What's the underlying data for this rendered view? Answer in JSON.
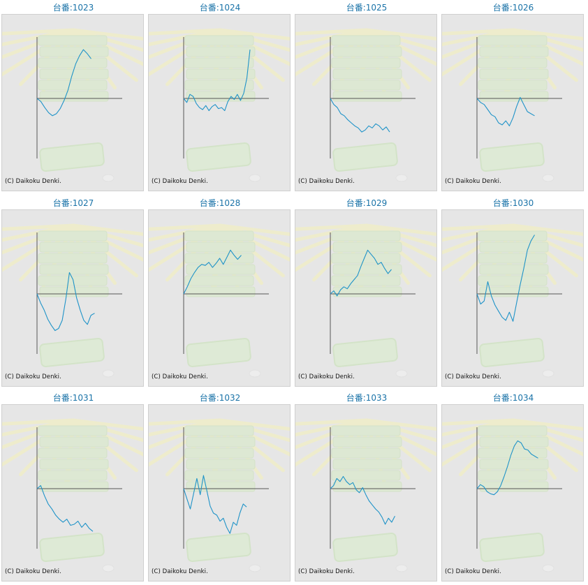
{
  "colors": {
    "title": "#1a73a8",
    "line": "#1f93c8",
    "axis": "#555555",
    "panel_bg": "#e6e6e6"
  },
  "chart_data": [
    {
      "type": "line",
      "title": "台番:1023",
      "copyright": "(C) Daikoku Denki.",
      "y": [
        0,
        -300,
        -900,
        -1400,
        -1700,
        -1500,
        -1000,
        -200,
        800,
        2200,
        3400,
        4200,
        4800,
        4400,
        3900
      ]
    },
    {
      "type": "line",
      "title": "台番:1024",
      "copyright": "(C) Daikoku Denki.",
      "y": [
        0,
        -400,
        400,
        200,
        -500,
        -900,
        -1100,
        -700,
        -1200,
        -800,
        -600,
        -1000,
        -900,
        -1200,
        -300,
        200,
        -100,
        400,
        -200,
        500,
        2000,
        4800
      ]
    },
    {
      "type": "line",
      "title": "台番:1025",
      "copyright": "(C) Daikoku Denki.",
      "y": [
        0,
        -600,
        -900,
        -1500,
        -1700,
        -2100,
        -2400,
        -2700,
        -2900,
        -3300,
        -3100,
        -2700,
        -2900,
        -2500,
        -2700,
        -3100,
        -2800,
        -3300
      ]
    },
    {
      "type": "line",
      "title": "台番:1026",
      "copyright": "(C) Daikoku Denki.",
      "y": [
        0,
        -400,
        -600,
        -1100,
        -1600,
        -1800,
        -2400,
        -2600,
        -2200,
        -2700,
        -1900,
        -800,
        100,
        -600,
        -1300,
        -1500,
        -1700
      ]
    },
    {
      "type": "line",
      "title": "台番:1027",
      "copyright": "(C) Daikoku Denki.",
      "y": [
        0,
        -900,
        -1600,
        -2500,
        -3100,
        -3600,
        -3400,
        -2600,
        -500,
        2100,
        1400,
        -400,
        -1600,
        -2600,
        -3000,
        -2100,
        -1900
      ]
    },
    {
      "type": "line",
      "title": "台番:1028",
      "copyright": "(C) Daikoku Denki.",
      "y": [
        0,
        700,
        1500,
        2100,
        2600,
        2900,
        2800,
        3100,
        2600,
        3000,
        3500,
        2900,
        3600,
        4300,
        3800,
        3400,
        3800
      ]
    },
    {
      "type": "line",
      "title": "台番:1029",
      "copyright": "(C) Daikoku Denki.",
      "y": [
        0,
        300,
        -200,
        400,
        700,
        500,
        1000,
        1400,
        1800,
        2700,
        3500,
        4300,
        3900,
        3500,
        2900,
        3100,
        2500,
        2000,
        2400
      ]
    },
    {
      "type": "line",
      "title": "台番:1030",
      "copyright": "(C) Daikoku Denki.",
      "y": [
        0,
        -1000,
        -700,
        1200,
        -200,
        -1100,
        -1700,
        -2300,
        -2600,
        -1800,
        -2700,
        -900,
        900,
        2500,
        4300,
        5200,
        5800
      ]
    },
    {
      "type": "line",
      "title": "台番:1031",
      "copyright": "(C) Daikoku Denki.",
      "y": [
        0,
        300,
        -700,
        -1500,
        -2000,
        -2600,
        -3000,
        -3300,
        -3000,
        -3600,
        -3500,
        -3200,
        -3800,
        -3400,
        -3900,
        -4200
      ]
    },
    {
      "type": "line",
      "title": "台番:1032",
      "copyright": "(C) Daikoku Denki.",
      "y": [
        0,
        -1000,
        -2000,
        -500,
        1000,
        -600,
        1300,
        -200,
        -1700,
        -2400,
        -2600,
        -3200,
        -2900,
        -3800,
        -4400,
        -3300,
        -3600,
        -2400,
        -1500,
        -1800
      ]
    },
    {
      "type": "line",
      "title": "台番:1033",
      "copyright": "(C) Daikoku Denki.",
      "y": [
        0,
        300,
        1000,
        700,
        1200,
        700,
        400,
        600,
        -100,
        -400,
        100,
        -600,
        -1200,
        -1600,
        -2000,
        -2300,
        -2800,
        -3500,
        -2900,
        -3300,
        -2700
      ]
    },
    {
      "type": "line",
      "title": "台番:1034",
      "copyright": "(C) Daikoku Denki.",
      "y": [
        0,
        400,
        200,
        -300,
        -500,
        -600,
        -300,
        300,
        1200,
        2200,
        3300,
        4200,
        4700,
        4500,
        3900,
        3800,
        3400,
        3200,
        3000
      ]
    }
  ]
}
